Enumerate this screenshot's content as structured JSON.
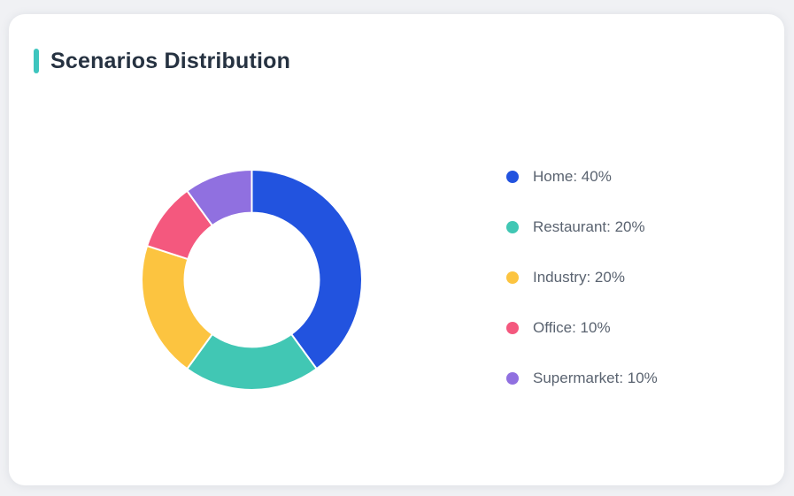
{
  "page": {
    "background_color": "#F0F1F4"
  },
  "card": {
    "title": "Scenarios Distribution",
    "accent_color": "#3EC5BE",
    "background_color": "#FFFFFF"
  },
  "chart_data": {
    "type": "pie",
    "variant": "donut",
    "title": "Scenarios Distribution",
    "categories": [
      "Home",
      "Restaurant",
      "Industry",
      "Office",
      "Supermarket"
    ],
    "values": [
      40,
      20,
      20,
      10,
      10
    ],
    "unit": "%",
    "colors": [
      "#2253DF",
      "#41C7B4",
      "#FCC440",
      "#F4587E",
      "#9070E0"
    ],
    "start_angle_deg": 0,
    "direction": "clockwise",
    "inner_radius_ratio": 0.61,
    "segment_gap_color": "#FFFFFF",
    "legend_position": "right",
    "legend": [
      {
        "label": "Home: 40%",
        "color": "#2253DF"
      },
      {
        "label": "Restaurant: 20%",
        "color": "#41C7B4"
      },
      {
        "label": "Industry: 20%",
        "color": "#FCC440"
      },
      {
        "label": "Office: 10%",
        "color": "#F4587E"
      },
      {
        "label": "Supermarket: 10%",
        "color": "#9070E0"
      }
    ]
  }
}
